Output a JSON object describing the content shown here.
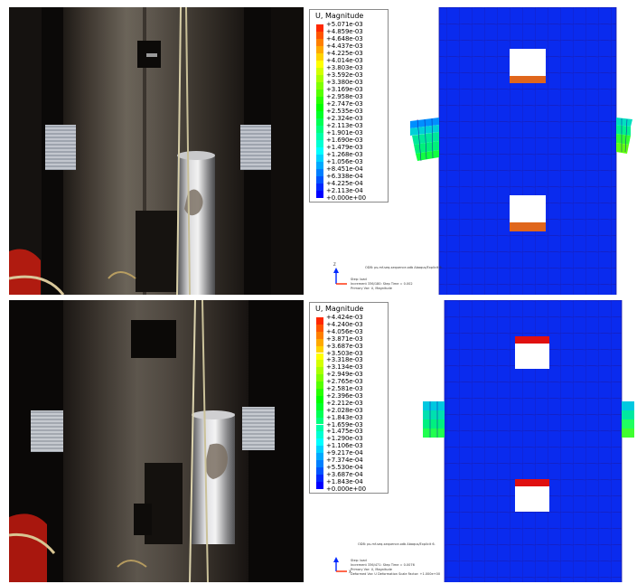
{
  "figure": {
    "colors": {
      "contour_scale": [
        "#0000ff",
        "#0028ff",
        "#0055ff",
        "#007fff",
        "#00a9ff",
        "#00d3ff",
        "#00ffff",
        "#00ffd3",
        "#00ffa9",
        "#00ff7f",
        "#00ff55",
        "#00ff28",
        "#00ff00",
        "#28ff00",
        "#55ff00",
        "#7fff00",
        "#a9ff00",
        "#d3ff00",
        "#ffff00",
        "#ffd300",
        "#ffa900",
        "#ff7f00",
        "#ff5500",
        "#ff2800"
      ],
      "mesh_blue": "#0a2bee",
      "mesh_line": "#1a1aa8"
    },
    "top_legend": {
      "title": "U, Magnitude",
      "labels": [
        "+5.071e-03",
        "+4.859e-03",
        "+4.648e-03",
        "+4.437e-03",
        "+4.225e-03",
        "+4.014e-03",
        "+3.803e-03",
        "+3.592e-03",
        "+3.380e-03",
        "+3.169e-03",
        "+2.958e-03",
        "+2.747e-03",
        "+2.535e-03",
        "+2.324e-03",
        "+2.113e-03",
        "+1.901e-03",
        "+1.690e-03",
        "+1.479e-03",
        "+1.268e-03",
        "+1.056e-03",
        "+8.451e-04",
        "+6.338e-04",
        "+4.225e-04",
        "+2.113e-04",
        "+0.000e+00"
      ]
    },
    "bottom_legend": {
      "title": "U, Magnitude",
      "labels": [
        "+4.424e-03",
        "+4.240e-03",
        "+4.056e-03",
        "+3.871e-03",
        "+3.687e-03",
        "+3.503e-03",
        "+3.318e-03",
        "+3.134e-03",
        "+2.949e-03",
        "+2.765e-03",
        "+2.581e-03",
        "+2.396e-03",
        "+2.212e-03",
        "+2.028e-03",
        "+1.843e-03",
        "+1.659e-03",
        "+1.475e-03",
        "+1.290e-03",
        "+1.106e-03",
        "+9.217e-04",
        "+7.374e-04",
        "+5.530e-04",
        "+3.687e-04",
        "+1.843e-04",
        "+0.000e+00"
      ]
    },
    "top_footer": {
      "odb_line": "ODB: ps-mf-seq-sequence.odb    Abaqus/Explicit 6.",
      "step_line": "Step: load",
      "increment_line": "Increment   336/180: Step Time =  0.002",
      "primary_var_line": "Primary Var: U, Magnitude"
    },
    "bottom_footer": {
      "odb_line": "ODB: ps-mf-seq-sequence.odb    Abaqus/Explicit 6.",
      "step_line": "Step: load",
      "increment_line": "Increment   336/471: Step Time =  0.0076",
      "primary_var_line": "Primary Var: U, Magnitude",
      "deformed_var_line": "Deformed Var: U    Deformation Scale Factor: +1.000e+00"
    },
    "triad": {
      "axis_z": "Z",
      "axis_x": "X"
    }
  }
}
